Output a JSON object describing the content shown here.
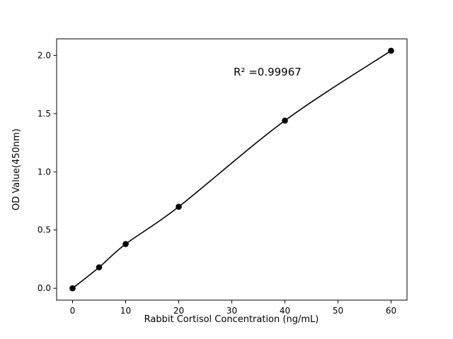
{
  "chart_data": {
    "type": "scatter",
    "title": "",
    "xlabel": "Rabbit Cortisol Concentration (ng/mL)",
    "ylabel": "OD Value(450nm)",
    "annotation": "R² =0.99967",
    "x": [
      0,
      5,
      10,
      20,
      40,
      60
    ],
    "y": [
      0.0,
      0.18,
      0.38,
      0.7,
      1.44,
      2.04
    ],
    "x_ticks": [
      "0",
      "10",
      "20",
      "30",
      "40",
      "50",
      "60"
    ],
    "y_ticks": [
      "0.0",
      "0.5",
      "1.0",
      "1.5",
      "2.0"
    ],
    "xlim": [
      -3,
      63
    ],
    "ylim": [
      -0.102,
      2.142
    ],
    "grid": false,
    "legend": "none",
    "line": true,
    "line_color": "#000000",
    "marker_color": "#000000",
    "background": "#ffffff"
  }
}
